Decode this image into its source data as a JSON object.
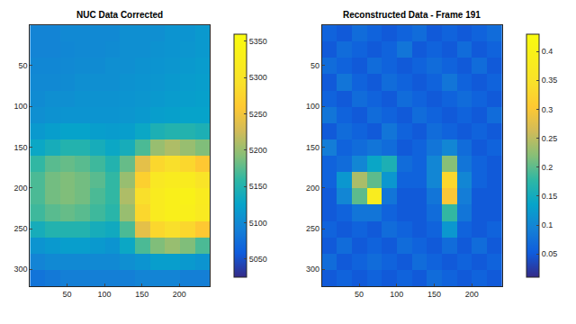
{
  "chart_data": [
    {
      "type": "heatmap",
      "title": "NUC Data Corrected",
      "x": [
        10.5,
        30.5,
        50.5,
        70.5,
        90.5,
        110.5,
        130.5,
        150.5,
        170.5,
        190.5,
        210.5,
        230.5
      ],
      "y": [
        10.5,
        30.5,
        50.5,
        70.5,
        90.5,
        110.5,
        130.5,
        150.5,
        170.5,
        190.5,
        210.5,
        230.5,
        250.5,
        270.5,
        290.5,
        310.5
      ],
      "z": [
        [
          5095,
          5095,
          5100,
          5100,
          5100,
          5100,
          5105,
          5105,
          5105,
          5110,
          5110,
          5115
        ],
        [
          5095,
          5095,
          5098,
          5100,
          5100,
          5102,
          5105,
          5105,
          5108,
          5110,
          5112,
          5115
        ],
        [
          5098,
          5098,
          5100,
          5102,
          5102,
          5105,
          5105,
          5108,
          5110,
          5112,
          5115,
          5118
        ],
        [
          5100,
          5100,
          5102,
          5105,
          5105,
          5105,
          5108,
          5110,
          5112,
          5115,
          5118,
          5120
        ],
        [
          5102,
          5105,
          5105,
          5108,
          5108,
          5108,
          5110,
          5112,
          5115,
          5118,
          5120,
          5122
        ],
        [
          5105,
          5108,
          5110,
          5110,
          5110,
          5110,
          5112,
          5115,
          5120,
          5122,
          5125,
          5125
        ],
        [
          5115,
          5120,
          5125,
          5125,
          5120,
          5118,
          5120,
          5130,
          5145,
          5150,
          5150,
          5145
        ],
        [
          5130,
          5140,
          5150,
          5150,
          5140,
          5130,
          5140,
          5170,
          5200,
          5210,
          5200,
          5190
        ],
        [
          5160,
          5175,
          5180,
          5175,
          5165,
          5150,
          5180,
          5240,
          5280,
          5290,
          5280,
          5260
        ],
        [
          5170,
          5185,
          5190,
          5185,
          5175,
          5160,
          5200,
          5270,
          5310,
          5320,
          5320,
          5300
        ],
        [
          5170,
          5185,
          5190,
          5185,
          5170,
          5160,
          5210,
          5290,
          5320,
          5330,
          5335,
          5320
        ],
        [
          5165,
          5175,
          5180,
          5175,
          5165,
          5155,
          5200,
          5280,
          5320,
          5330,
          5330,
          5315
        ],
        [
          5140,
          5150,
          5150,
          5150,
          5140,
          5135,
          5170,
          5240,
          5280,
          5290,
          5280,
          5260
        ],
        [
          5110,
          5115,
          5120,
          5120,
          5115,
          5110,
          5130,
          5170,
          5190,
          5200,
          5190,
          5170
        ],
        [
          5095,
          5100,
          5100,
          5100,
          5100,
          5100,
          5105,
          5110,
          5120,
          5120,
          5115,
          5110
        ],
        [
          5080,
          5085,
          5090,
          5090,
          5090,
          5090,
          5090,
          5095,
          5095,
          5095,
          5090,
          5090
        ]
      ],
      "xlim": [
        0.5,
        240.5
      ],
      "ylim": [
        0.5,
        320.5
      ],
      "xticks": [
        50,
        100,
        150,
        200
      ],
      "yticks": [
        50,
        100,
        150,
        200,
        250,
        300
      ],
      "zlim": [
        5025,
        5360
      ],
      "zticks": [
        5050,
        5100,
        5150,
        5200,
        5250,
        5300,
        5350
      ]
    },
    {
      "type": "heatmap",
      "title": "Reconstructed Data - Frame 191",
      "x": [
        10.5,
        30.5,
        50.5,
        70.5,
        90.5,
        110.5,
        130.5,
        150.5,
        170.5,
        190.5,
        210.5,
        230.5
      ],
      "y": [
        10.5,
        30.5,
        50.5,
        70.5,
        90.5,
        110.5,
        130.5,
        150.5,
        170.5,
        190.5,
        210.5,
        230.5,
        250.5,
        270.5,
        290.5,
        310.5
      ],
      "z": [
        [
          0.06,
          0.05,
          0.07,
          0.06,
          0.05,
          0.06,
          0.07,
          0.05,
          0.06,
          0.05,
          0.06,
          0.07
        ],
        [
          0.05,
          0.07,
          0.06,
          0.05,
          0.06,
          0.08,
          0.05,
          0.06,
          0.05,
          0.07,
          0.05,
          0.06
        ],
        [
          0.07,
          0.06,
          0.05,
          0.07,
          0.06,
          0.05,
          0.06,
          0.07,
          0.06,
          0.05,
          0.07,
          0.05
        ],
        [
          0.05,
          0.08,
          0.06,
          0.05,
          0.07,
          0.06,
          0.05,
          0.06,
          0.08,
          0.06,
          0.05,
          0.06
        ],
        [
          0.06,
          0.05,
          0.07,
          0.06,
          0.05,
          0.07,
          0.06,
          0.05,
          0.06,
          0.07,
          0.06,
          0.05
        ],
        [
          0.08,
          0.06,
          0.05,
          0.07,
          0.06,
          0.05,
          0.07,
          0.06,
          0.05,
          0.06,
          0.05,
          0.07
        ],
        [
          0.05,
          0.07,
          0.06,
          0.05,
          0.08,
          0.06,
          0.05,
          0.07,
          0.06,
          0.05,
          0.06,
          0.05
        ],
        [
          0.09,
          0.06,
          0.07,
          0.08,
          0.07,
          0.05,
          0.06,
          0.08,
          0.1,
          0.07,
          0.05,
          0.06
        ],
        [
          0.06,
          0.07,
          0.1,
          0.14,
          0.16,
          0.07,
          0.06,
          0.1,
          0.22,
          0.08,
          0.06,
          0.05
        ],
        [
          0.06,
          0.12,
          0.24,
          0.2,
          0.12,
          0.06,
          0.06,
          0.1,
          0.33,
          0.1,
          0.06,
          0.05
        ],
        [
          0.05,
          0.1,
          0.2,
          0.38,
          0.08,
          0.05,
          0.05,
          0.08,
          0.3,
          0.09,
          0.05,
          0.05
        ],
        [
          0.05,
          0.06,
          0.08,
          0.08,
          0.06,
          0.05,
          0.05,
          0.07,
          0.18,
          0.08,
          0.05,
          0.05
        ],
        [
          0.06,
          0.05,
          0.06,
          0.05,
          0.07,
          0.06,
          0.05,
          0.06,
          0.12,
          0.06,
          0.05,
          0.06
        ],
        [
          0.05,
          0.07,
          0.05,
          0.06,
          0.05,
          0.07,
          0.06,
          0.05,
          0.07,
          0.05,
          0.07,
          0.05
        ],
        [
          0.07,
          0.05,
          0.06,
          0.07,
          0.06,
          0.05,
          0.07,
          0.06,
          0.05,
          0.06,
          0.05,
          0.06
        ],
        [
          0.05,
          0.06,
          0.05,
          0.06,
          0.05,
          0.06,
          0.05,
          0.07,
          0.06,
          0.05,
          0.06,
          0.05
        ]
      ],
      "xlim": [
        0.5,
        240.5
      ],
      "ylim": [
        0.5,
        320.5
      ],
      "xticks": [
        50,
        100,
        150,
        200
      ],
      "yticks": [
        50,
        100,
        150,
        200,
        250,
        300
      ],
      "zlim": [
        0.01,
        0.43
      ],
      "zticks": [
        0.05,
        0.1,
        0.15,
        0.2,
        0.25,
        0.3,
        0.35,
        0.4
      ]
    }
  ]
}
